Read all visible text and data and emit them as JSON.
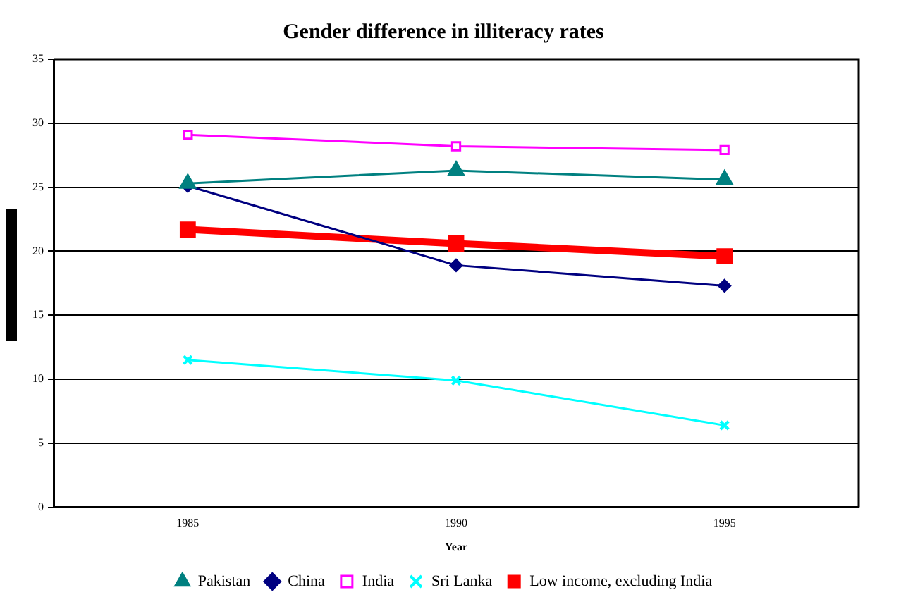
{
  "chart_data": {
    "type": "line",
    "title": "Gender difference in illiteracy rates",
    "xlabel": "Year",
    "categories": [
      "1985",
      "1990",
      "1995"
    ],
    "series": [
      {
        "name": "China",
        "color": "#000080",
        "values": [
          25.1,
          18.9,
          17.3
        ],
        "marker": "diamond"
      },
      {
        "name": "India",
        "color": "#ff00ff",
        "values": [
          29.1,
          28.2,
          27.9
        ],
        "marker": "square"
      },
      {
        "name": "Pakistan",
        "color": "#008080",
        "values": [
          25.3,
          26.3,
          25.6
        ],
        "marker": "triangle"
      },
      {
        "name": "Sri Lanka",
        "color": "#00ffff",
        "values": [
          11.5,
          9.9,
          6.4
        ],
        "marker": "cross"
      },
      {
        "name": "Low income, excluding India",
        "color": "#ff0000",
        "values": [
          21.7,
          20.6,
          19.6
        ],
        "marker": "square"
      }
    ],
    "ylim": [
      0,
      35
    ],
    "yticks": [
      0,
      5,
      10,
      15,
      20,
      25,
      30,
      35
    ],
    "grid": "y",
    "legend": "bottom"
  }
}
